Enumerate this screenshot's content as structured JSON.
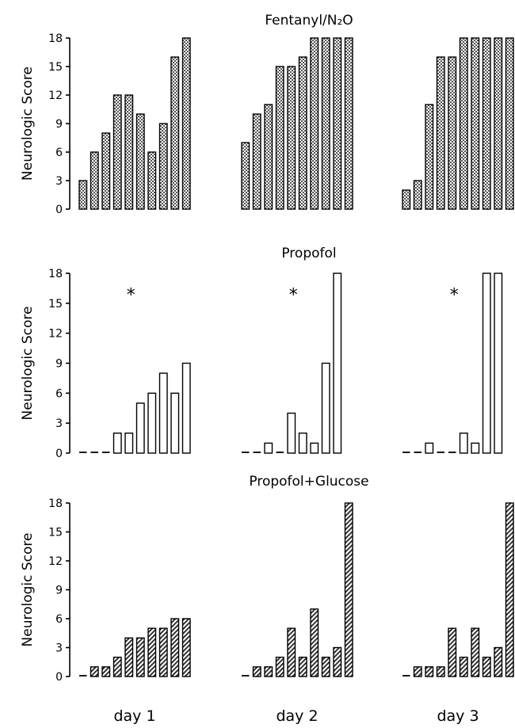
{
  "chart_data": [
    {
      "type": "bar",
      "title": "Fentanyl/N₂O",
      "ylabel": "Neurologic Score",
      "ylim": [
        0,
        18
      ],
      "yticks": [
        "0",
        "3",
        "6",
        "9",
        "12",
        "15",
        "18"
      ],
      "fill_pattern": "crosshatch",
      "groups": [
        {
          "label": "day 1",
          "values": [
            3,
            6,
            8,
            12,
            12,
            10,
            6,
            9,
            16,
            18
          ],
          "marker": ""
        },
        {
          "label": "day 2",
          "values": [
            7,
            10,
            11,
            15,
            15,
            16,
            18,
            18,
            18,
            18
          ],
          "marker": ""
        },
        {
          "label": "day 3",
          "values": [
            2,
            3,
            11,
            16,
            16,
            18,
            18,
            18,
            18,
            18
          ],
          "marker": ""
        }
      ]
    },
    {
      "type": "bar",
      "title": "Propofol",
      "ylabel": "Neurologic Score",
      "ylim": [
        0,
        18
      ],
      "yticks": [
        "0",
        "3",
        "6",
        "9",
        "12",
        "15",
        "18"
      ],
      "fill_pattern": "open",
      "groups": [
        {
          "label": "day 1",
          "values": [
            0,
            0,
            0,
            2,
            2,
            5,
            6,
            8,
            6,
            9
          ],
          "marker": "*"
        },
        {
          "label": "day 2",
          "values": [
            0,
            0,
            1,
            0,
            4,
            2,
            1,
            9,
            18
          ],
          "marker": "*"
        },
        {
          "label": "day 3",
          "values": [
            0,
            0,
            1,
            0,
            0,
            2,
            1,
            18,
            18
          ],
          "marker": "*"
        }
      ]
    },
    {
      "type": "bar",
      "title": "Propofol+Glucose",
      "ylabel": "Neurologic Score",
      "ylim": [
        0,
        18
      ],
      "yticks": [
        "0",
        "3",
        "6",
        "9",
        "12",
        "15",
        "18"
      ],
      "fill_pattern": "diagonal",
      "groups": [
        {
          "label": "day 1",
          "values": [
            0,
            1,
            1,
            2,
            4,
            4,
            5,
            5,
            6,
            6
          ],
          "marker": ""
        },
        {
          "label": "day 2",
          "values": [
            0,
            1,
            1,
            2,
            5,
            2,
            7,
            2,
            3,
            18
          ],
          "marker": ""
        },
        {
          "label": "day 3",
          "values": [
            0,
            1,
            1,
            1,
            5,
            2,
            5,
            2,
            3,
            18
          ],
          "marker": ""
        }
      ]
    }
  ],
  "x_labels": [
    "day 1",
    "day 2",
    "day 3"
  ]
}
